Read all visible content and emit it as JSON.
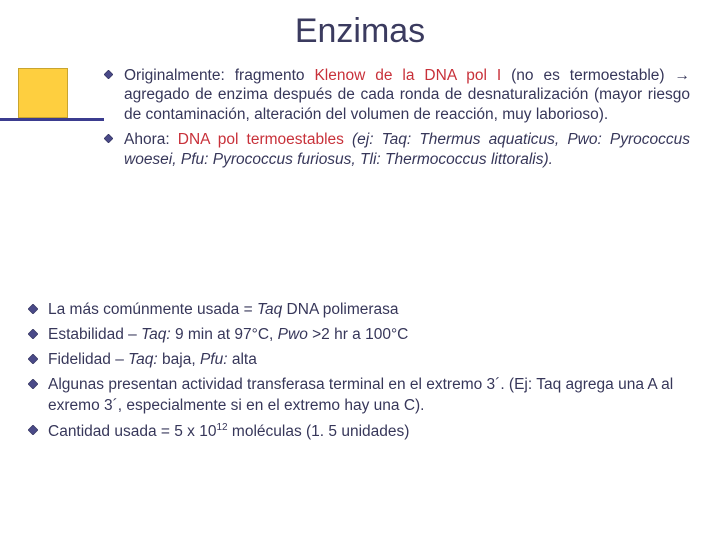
{
  "title": "Enzimas",
  "colors": {
    "text": "#37375a",
    "accent_red": "#c8313a",
    "accent_yellow": "#fecf3f",
    "accent_navy": "#3b3c8f",
    "bullet_fill": "#4a4a88",
    "background": "#ffffff"
  },
  "top_bullets": [
    {
      "plain_pre": "Originalmente: fragmento ",
      "red": "Klenow de la DNA pol I",
      "plain_post": " (no es termoestable) → agregado de enzima después de cada ronda de desnaturalización (mayor riesgo de contaminación, alteración del volumen de reacción, muy laborioso)."
    },
    {
      "plain_pre": "Ahora: ",
      "red": "DNA pol termoestables",
      "ital": " (ej: Taq: Thermus aquaticus, Pwo: Pyrococcus woesei, Pfu: Pyrococcus furiosus, Tli: Thermococcus littoralis)."
    }
  ],
  "bottom_bullets": [
    {
      "html": "La más comúnmente usada = <span class=\"ital\">Taq</span> DNA polimerasa"
    },
    {
      "html": "Estabilidad – <span class=\"ital\">Taq:</span>  9 min at 97°C, <span class=\"ital\">Pwo</span> >2 hr a 100°C"
    },
    {
      "html": "Fidelidad – <span class=\"ital\">Taq:</span> baja,  <span class=\"ital\">Pfu:</span> alta"
    },
    {
      "html": "Algunas presentan actividad transferasa terminal en el extremo 3´. (Ej: Taq agrega una A al exremo 3´, especialmente si en el extremo hay una C)."
    },
    {
      "html": "Cantidad usada = 5 x 10<span class=\"sup\">12</span> moléculas (1. 5 unidades)"
    }
  ]
}
